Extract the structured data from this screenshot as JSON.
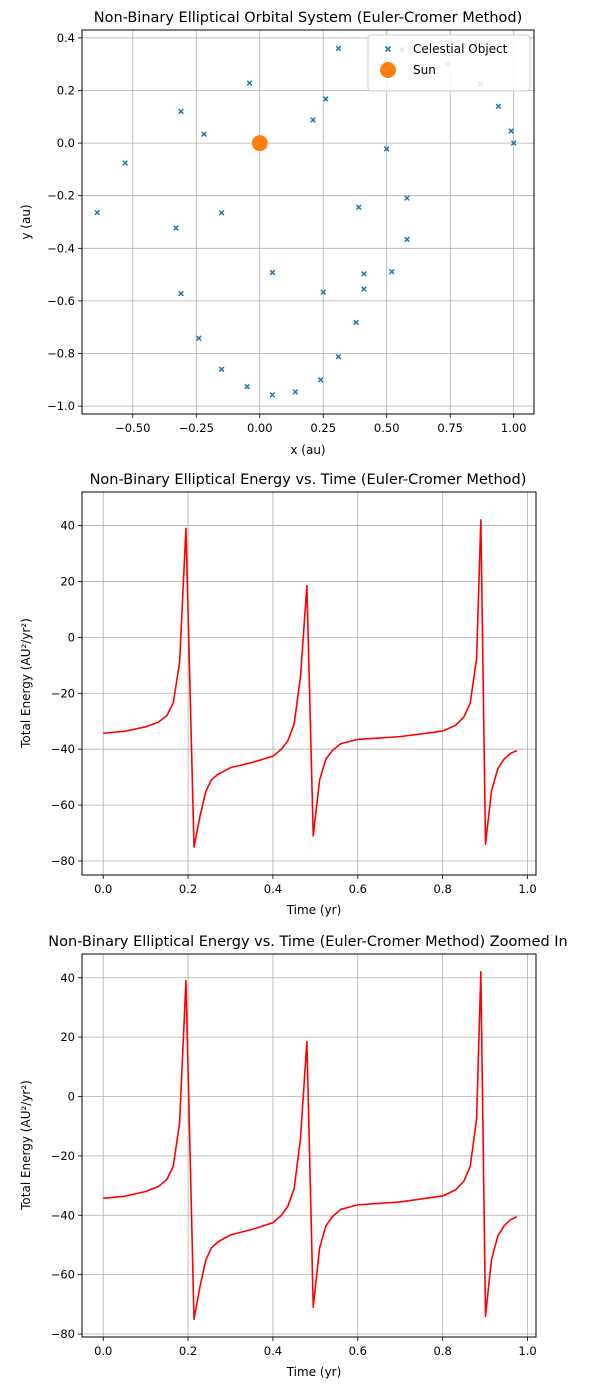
{
  "chart_data": [
    {
      "type": "scatter",
      "title": "Non-Binary Elliptical Orbital System (Euler-Cromer Method)",
      "xlabel": "x (au)",
      "ylabel": "y (au)",
      "xlim": [
        -0.7,
        1.08
      ],
      "ylim": [
        -1.03,
        0.43
      ],
      "xticks": [
        -0.5,
        -0.25,
        0.0,
        0.25,
        0.5,
        0.75,
        1.0
      ],
      "xtick_labels": [
        "−0.50",
        "−0.25",
        "0.00",
        "0.25",
        "0.50",
        "0.75",
        "1.00"
      ],
      "yticks": [
        -1.0,
        -0.8,
        -0.6,
        -0.4,
        -0.2,
        0.0,
        0.2,
        0.4
      ],
      "ytick_labels": [
        "−1.0",
        "−0.8",
        "−0.6",
        "−0.4",
        "−0.2",
        "0.0",
        "0.2",
        "0.4"
      ],
      "grid": true,
      "legend_position": "top-right",
      "series": [
        {
          "name": "Celestial Object",
          "marker": "x",
          "color": "#1f77b4",
          "points": [
            [
              1.0,
              0.0
            ],
            [
              0.99,
              0.046
            ],
            [
              0.94,
              0.14
            ],
            [
              0.87,
              0.225
            ],
            [
              0.74,
              0.3
            ],
            [
              0.56,
              0.355
            ],
            [
              0.31,
              0.36
            ],
            [
              0.26,
              0.168
            ],
            [
              0.21,
              0.088
            ],
            [
              -0.04,
              0.228
            ],
            [
              -0.22,
              0.034
            ],
            [
              -0.31,
              0.121
            ],
            [
              -0.53,
              -0.076
            ],
            [
              -0.64,
              -0.264
            ],
            [
              -0.33,
              -0.323
            ],
            [
              -0.15,
              -0.265
            ],
            [
              -0.31,
              -0.572
            ],
            [
              -0.24,
              -0.742
            ],
            [
              -0.15,
              -0.86
            ],
            [
              -0.05,
              -0.926
            ],
            [
              0.05,
              -0.957
            ],
            [
              0.14,
              -0.946
            ],
            [
              0.24,
              -0.9
            ],
            [
              0.31,
              -0.812
            ],
            [
              0.38,
              -0.682
            ],
            [
              0.41,
              -0.555
            ],
            [
              0.52,
              -0.489
            ],
            [
              0.58,
              -0.366
            ],
            [
              0.58,
              -0.209
            ],
            [
              0.5,
              -0.022
            ],
            [
              0.39,
              -0.244
            ],
            [
              0.41,
              -0.497
            ],
            [
              0.25,
              -0.567
            ],
            [
              0.05,
              -0.492
            ]
          ]
        },
        {
          "name": "Sun",
          "marker": "o",
          "color": "#ff7f0e",
          "points": [
            [
              0.0,
              0.0
            ]
          ]
        }
      ]
    },
    {
      "type": "line",
      "title": "Non-Binary Elliptical Energy vs. Time (Euler-Cromer Method)",
      "xlabel": "Time (yr)",
      "ylabel": "Total Energy (AU²/yr²)",
      "xlim": [
        -0.05,
        1.02
      ],
      "ylim": [
        -85,
        52
      ],
      "xticks": [
        0.0,
        0.2,
        0.4,
        0.6,
        0.8,
        1.0
      ],
      "xtick_labels": [
        "0.0",
        "0.2",
        "0.4",
        "0.6",
        "0.8",
        "1.0"
      ],
      "yticks": [
        -80,
        -60,
        -40,
        -20,
        0,
        20,
        40
      ],
      "ytick_labels": [
        "−80",
        "−60",
        "−40",
        "−20",
        "0",
        "20",
        "40"
      ],
      "grid": true,
      "series": [
        {
          "color": "#ff0000",
          "x": [
            0.0,
            0.05,
            0.1,
            0.13,
            0.15,
            0.165,
            0.18,
            0.195,
            0.214,
            0.228,
            0.242,
            0.255,
            0.27,
            0.3,
            0.35,
            0.4,
            0.42,
            0.435,
            0.45,
            0.465,
            0.48,
            0.495,
            0.51,
            0.525,
            0.54,
            0.56,
            0.6,
            0.7,
            0.8,
            0.83,
            0.85,
            0.865,
            0.88,
            0.89,
            0.901,
            0.915,
            0.93,
            0.945,
            0.96,
            0.975
          ],
          "y": [
            -34.3,
            -33.6,
            -32.0,
            -30.3,
            -28.0,
            -23.5,
            -9.0,
            39.0,
            -75.0,
            -64.0,
            -55.0,
            -51.0,
            -49.0,
            -46.6,
            -44.8,
            -42.5,
            -40.0,
            -37.0,
            -31.0,
            -14.0,
            18.5,
            -71.0,
            -51.0,
            -43.5,
            -40.5,
            -38.0,
            -36.5,
            -35.5,
            -33.5,
            -31.5,
            -28.5,
            -23.5,
            -7.5,
            42.0,
            -74.0,
            -55.0,
            -47.0,
            -43.5,
            -41.5,
            -40.5
          ]
        }
      ]
    },
    {
      "type": "line",
      "title": "Non-Binary Elliptical Energy vs. Time (Euler-Cromer Method) Zoomed In",
      "xlabel": "Time (yr)",
      "ylabel": "Total Energy (AU²/yr²)",
      "xlim": [
        -0.05,
        1.02
      ],
      "ylim": [
        -81,
        48
      ],
      "xticks": [
        0.0,
        0.2,
        0.4,
        0.6,
        0.8,
        1.0
      ],
      "xtick_labels": [
        "0.0",
        "0.2",
        "0.4",
        "0.6",
        "0.8",
        "1.0"
      ],
      "yticks": [
        -80,
        -60,
        -40,
        -20,
        0,
        20,
        40
      ],
      "ytick_labels": [
        "−80",
        "−60",
        "−40",
        "−20",
        "0",
        "20",
        "40"
      ],
      "grid": true,
      "series": [
        {
          "color": "#ff0000",
          "x": [
            0.0,
            0.05,
            0.1,
            0.13,
            0.15,
            0.165,
            0.18,
            0.195,
            0.214,
            0.228,
            0.242,
            0.255,
            0.27,
            0.3,
            0.35,
            0.4,
            0.42,
            0.435,
            0.45,
            0.465,
            0.48,
            0.495,
            0.51,
            0.525,
            0.54,
            0.56,
            0.6,
            0.7,
            0.8,
            0.83,
            0.85,
            0.865,
            0.88,
            0.89,
            0.901,
            0.915,
            0.93,
            0.945,
            0.96,
            0.975
          ],
          "y": [
            -34.3,
            -33.6,
            -32.0,
            -30.3,
            -28.0,
            -23.5,
            -9.0,
            39.0,
            -75.0,
            -64.0,
            -55.0,
            -51.0,
            -49.0,
            -46.6,
            -44.8,
            -42.5,
            -40.0,
            -37.0,
            -31.0,
            -14.0,
            18.5,
            -71.0,
            -51.0,
            -43.5,
            -40.5,
            -38.0,
            -36.5,
            -35.5,
            -33.5,
            -31.5,
            -28.5,
            -23.5,
            -7.5,
            42.0,
            -74.0,
            -55.0,
            -47.0,
            -43.5,
            -41.5,
            -40.5
          ]
        }
      ]
    }
  ]
}
